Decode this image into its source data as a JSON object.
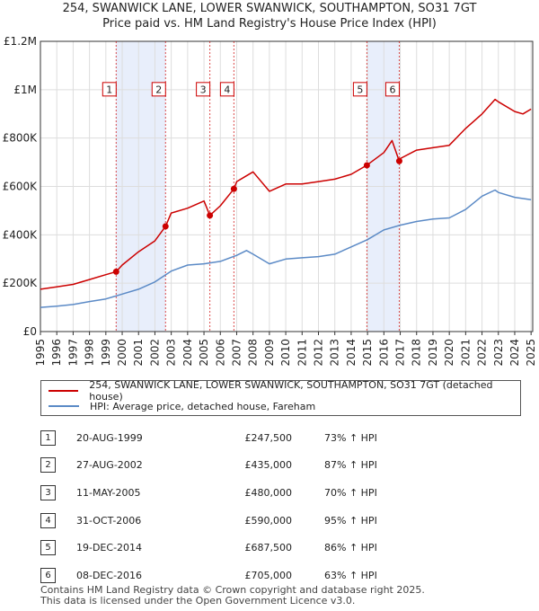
{
  "title_line1": "254, SWANWICK LANE, LOWER SWANWICK, SOUTHAMPTON, SO31 7GT",
  "title_line2": "Price paid vs. HM Land Registry's House Price Index (HPI)",
  "colors": {
    "property": "#cc0000",
    "hpi": "#5b8ac6",
    "highlight": "#e8eefb",
    "grid": "#dddddd"
  },
  "chart_data": {
    "type": "line",
    "xlim": [
      1995,
      2025.1
    ],
    "ylim": [
      0,
      1200000
    ],
    "y_ticks": [
      0,
      200000,
      400000,
      600000,
      800000,
      1000000,
      1200000
    ],
    "y_tick_labels": [
      "£0",
      "£200K",
      "£400K",
      "£600K",
      "£800K",
      "£1M",
      "£1.2M"
    ],
    "x_ticks": [
      "1995",
      "1996",
      "1997",
      "1998",
      "1999",
      "2000",
      "2001",
      "2002",
      "2003",
      "2004",
      "2005",
      "2006",
      "2007",
      "2008",
      "2009",
      "2010",
      "2011",
      "2012",
      "2013",
      "2014",
      "2015",
      "2016",
      "2017",
      "2018",
      "2019",
      "2020",
      "2021",
      "2022",
      "2023",
      "2024",
      "2025"
    ],
    "highlight_spans": [
      [
        1999.63,
        2002.65
      ],
      [
        2014.96,
        2016.94
      ]
    ],
    "series": [
      {
        "name": "254, SWANWICK LANE, LOWER SWANWICK, SOUTHAMPTON, SO31 7GT (detached house)",
        "x": [
          1995.0,
          1996.0,
          1997.0,
          1998.0,
          1999.0,
          1999.63,
          2000.0,
          2001.0,
          2002.0,
          2002.65,
          2003.0,
          2004.0,
          2005.0,
          2005.36,
          2006.0,
          2006.83,
          2007.0,
          2007.5,
          2008.0,
          2009.0,
          2010.0,
          2011.0,
          2012.0,
          2013.0,
          2014.0,
          2014.96,
          2015.0,
          2016.0,
          2016.5,
          2016.94,
          2017.0,
          2018.0,
          2019.0,
          2020.0,
          2021.0,
          2022.0,
          2022.8,
          2023.0,
          2024.0,
          2024.5,
          2025.0
        ],
        "y": [
          175000,
          185000,
          195000,
          215000,
          235000,
          247500,
          275000,
          330000,
          375000,
          435000,
          490000,
          510000,
          540000,
          480000,
          520000,
          590000,
          620000,
          640000,
          660000,
          580000,
          610000,
          610000,
          620000,
          630000,
          650000,
          687500,
          690000,
          740000,
          790000,
          705000,
          715000,
          750000,
          760000,
          770000,
          840000,
          900000,
          960000,
          950000,
          910000,
          900000,
          920000
        ]
      },
      {
        "name": "HPI: Average price, detached house, Fareham",
        "x": [
          1995.0,
          1996.0,
          1997.0,
          1998.0,
          1999.0,
          2000.0,
          2001.0,
          2002.0,
          2003.0,
          2004.0,
          2005.0,
          2006.0,
          2007.0,
          2007.6,
          2008.0,
          2009.0,
          2010.0,
          2011.0,
          2012.0,
          2013.0,
          2014.0,
          2015.0,
          2016.0,
          2017.0,
          2018.0,
          2019.0,
          2020.0,
          2021.0,
          2022.0,
          2022.8,
          2023.0,
          2024.0,
          2025.0
        ],
        "y": [
          100000,
          105000,
          112000,
          124000,
          135000,
          155000,
          175000,
          205000,
          250000,
          275000,
          280000,
          290000,
          315000,
          335000,
          320000,
          280000,
          300000,
          305000,
          310000,
          320000,
          350000,
          380000,
          420000,
          440000,
          455000,
          465000,
          470000,
          505000,
          560000,
          585000,
          575000,
          555000,
          545000
        ]
      }
    ],
    "sales": [
      {
        "num": "1",
        "x": 1999.63,
        "y": 247500
      },
      {
        "num": "2",
        "x": 2002.65,
        "y": 435000
      },
      {
        "num": "3",
        "x": 2005.36,
        "y": 480000
      },
      {
        "num": "4",
        "x": 2006.83,
        "y": 590000
      },
      {
        "num": "5",
        "x": 2014.96,
        "y": 687500
      },
      {
        "num": "6",
        "x": 2016.94,
        "y": 705000
      }
    ]
  },
  "legend": {
    "property": "254, SWANWICK LANE, LOWER SWANWICK, SOUTHAMPTON, SO31 7GT (detached house)",
    "hpi": "HPI: Average price, detached house, Fareham"
  },
  "transactions": [
    {
      "num": "1",
      "date": "20-AUG-1999",
      "price": "£247,500",
      "hpi": "73% ↑ HPI"
    },
    {
      "num": "2",
      "date": "27-AUG-2002",
      "price": "£435,000",
      "hpi": "87% ↑ HPI"
    },
    {
      "num": "3",
      "date": "11-MAY-2005",
      "price": "£480,000",
      "hpi": "70% ↑ HPI"
    },
    {
      "num": "4",
      "date": "31-OCT-2006",
      "price": "£590,000",
      "hpi": "95% ↑ HPI"
    },
    {
      "num": "5",
      "date": "19-DEC-2014",
      "price": "£687,500",
      "hpi": "86% ↑ HPI"
    },
    {
      "num": "6",
      "date": "08-DEC-2016",
      "price": "£705,000",
      "hpi": "63% ↑ HPI"
    }
  ],
  "footer_line1": "Contains HM Land Registry data © Crown copyright and database right 2025.",
  "footer_line2": "This data is licensed under the Open Government Licence v3.0."
}
